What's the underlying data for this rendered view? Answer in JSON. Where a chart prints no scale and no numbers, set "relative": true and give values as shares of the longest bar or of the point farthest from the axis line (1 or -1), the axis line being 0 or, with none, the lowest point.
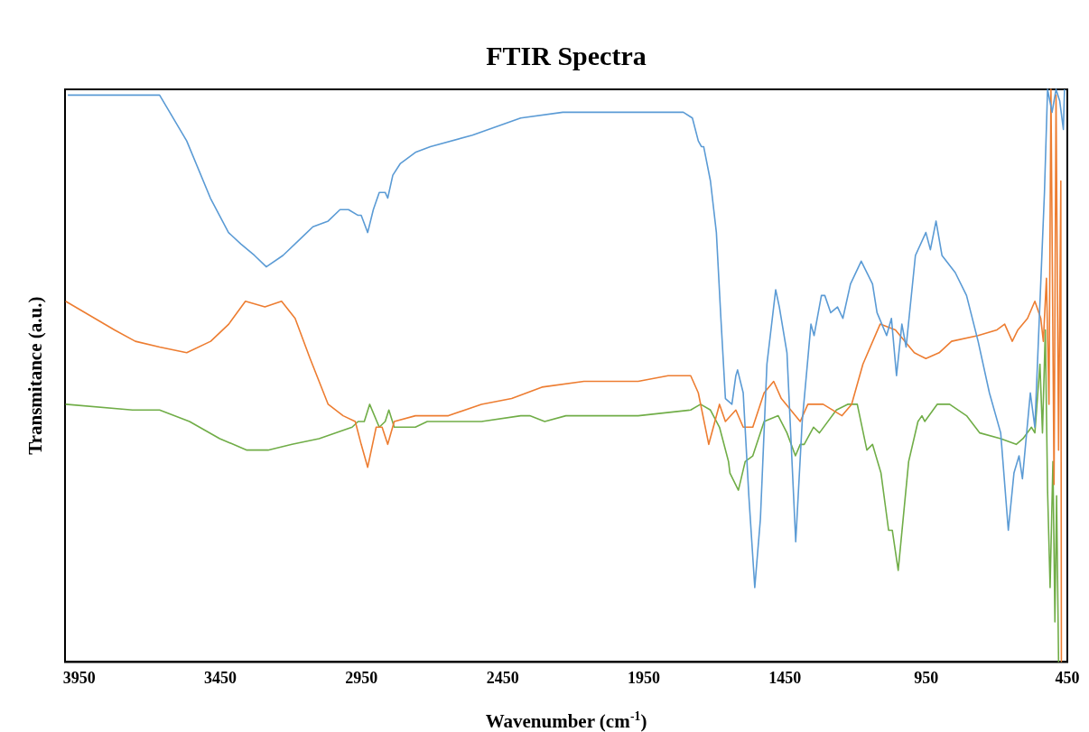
{
  "chart_data": {
    "type": "line",
    "title": "FTIR Spectra",
    "xlabel": "Wavenumber (cm$^{-1}$)",
    "ylabel": "Transmitance (a.u.)",
    "relative": true,
    "xlim": [
      4000,
      450
    ],
    "xticks": [
      3950,
      3450,
      2950,
      2450,
      1950,
      1450,
      950,
      450
    ],
    "grid": false,
    "legend": false,
    "marker": "none",
    "line_style": "solid",
    "series": [
      {
        "color": "#5b9bd5",
        "x": [
          3990,
          3719,
          3665,
          3569,
          3485,
          3421,
          3377,
          3329,
          3287,
          3228,
          3164,
          3122,
          3068,
          3026,
          2996,
          2962,
          2951,
          2928,
          2908,
          2887,
          2866,
          2857,
          2839,
          2813,
          2759,
          2706,
          2557,
          2386,
          2237,
          2077,
          1874,
          1810,
          1778,
          1757,
          1746,
          1738,
          1714,
          1693,
          1677,
          1661,
          1638,
          1624,
          1618,
          1598,
          1578,
          1557,
          1537,
          1514,
          1483,
          1470,
          1443,
          1412,
          1389,
          1358,
          1347,
          1321,
          1309,
          1288,
          1264,
          1245,
          1218,
          1180,
          1140,
          1124,
          1090,
          1073,
          1055,
          1036,
          1021,
          988,
          951,
          935,
          915,
          894,
          847,
          807,
          766,
          726,
          686,
          659,
          639,
          621,
          609,
          581,
          565,
          531,
          520,
          504,
          490,
          477,
          464,
          460
        ],
        "values": [
          0.99,
          0.99,
          0.99,
          0.91,
          0.81,
          0.75,
          0.73,
          0.71,
          0.69,
          0.71,
          0.74,
          0.76,
          0.77,
          0.79,
          0.79,
          0.78,
          0.78,
          0.75,
          0.79,
          0.82,
          0.82,
          0.81,
          0.85,
          0.87,
          0.89,
          0.9,
          0.92,
          0.95,
          0.96,
          0.96,
          0.96,
          0.96,
          0.95,
          0.91,
          0.9,
          0.9,
          0.84,
          0.75,
          0.6,
          0.46,
          0.45,
          0.5,
          0.51,
          0.47,
          0.29,
          0.13,
          0.25,
          0.52,
          0.65,
          0.62,
          0.54,
          0.21,
          0.42,
          0.59,
          0.57,
          0.64,
          0.64,
          0.61,
          0.62,
          0.6,
          0.66,
          0.7,
          0.66,
          0.61,
          0.57,
          0.6,
          0.5,
          0.59,
          0.55,
          0.71,
          0.75,
          0.72,
          0.77,
          0.71,
          0.68,
          0.64,
          0.56,
          0.47,
          0.4,
          0.23,
          0.33,
          0.36,
          0.32,
          0.47,
          0.41,
          0.82,
          1.0,
          0.96,
          1.0,
          0.98,
          0.93,
          1.0
        ]
      },
      {
        "color": "#ed7d31",
        "x": [
          3998,
          3825,
          3751,
          3665,
          3569,
          3484,
          3420,
          3361,
          3292,
          3233,
          3185,
          3132,
          3068,
          3015,
          2972,
          2951,
          2928,
          2898,
          2877,
          2857,
          2834,
          2759,
          2727,
          2642,
          2525,
          2418,
          2311,
          2162,
          1970,
          1864,
          1784,
          1757,
          1720,
          1682,
          1661,
          1624,
          1598,
          1564,
          1524,
          1490,
          1463,
          1396,
          1369,
          1315,
          1248,
          1214,
          1174,
          1113,
          1059,
          992,
          951,
          904,
          860,
          766,
          699,
          672,
          645,
          625,
          591,
          565,
          544,
          535,
          524,
          515,
          508,
          497,
          490,
          481,
          473,
          471
        ],
        "values": [
          0.63,
          0.58,
          0.56,
          0.55,
          0.54,
          0.56,
          0.59,
          0.63,
          0.62,
          0.63,
          0.6,
          0.53,
          0.45,
          0.43,
          0.42,
          0.38,
          0.34,
          0.41,
          0.41,
          0.38,
          0.42,
          0.43,
          0.43,
          0.43,
          0.45,
          0.46,
          0.48,
          0.49,
          0.49,
          0.5,
          0.5,
          0.47,
          0.38,
          0.45,
          0.42,
          0.44,
          0.41,
          0.41,
          0.47,
          0.49,
          0.46,
          0.42,
          0.45,
          0.45,
          0.43,
          0.45,
          0.52,
          0.59,
          0.58,
          0.54,
          0.53,
          0.54,
          0.56,
          0.57,
          0.58,
          0.59,
          0.56,
          0.58,
          0.6,
          0.63,
          0.6,
          0.56,
          0.67,
          0.45,
          1.0,
          0.31,
          0.99,
          0.37,
          0.84,
          0
        ]
      },
      {
        "color": "#70ad47",
        "x": [
          3998,
          3761,
          3665,
          3559,
          3452,
          3356,
          3281,
          3196,
          3100,
          2983,
          2962,
          2940,
          2921,
          2887,
          2866,
          2853,
          2834,
          2759,
          2717,
          2525,
          2386,
          2354,
          2301,
          2226,
          1970,
          1784,
          1749,
          1714,
          1682,
          1650,
          1645,
          1615,
          1591,
          1564,
          1524,
          1474,
          1443,
          1413,
          1396,
          1382,
          1349,
          1328,
          1268,
          1228,
          1194,
          1160,
          1140,
          1110,
          1083,
          1070,
          1049,
          1012,
          979,
          965,
          955,
          911,
          867,
          807,
          760,
          686,
          631,
          607,
          577,
          565,
          547,
          538,
          528,
          520,
          511,
          501,
          494,
          488,
          481
        ],
        "values": [
          0.45,
          0.44,
          0.44,
          0.42,
          0.39,
          0.37,
          0.37,
          0.38,
          0.39,
          0.41,
          0.42,
          0.42,
          0.45,
          0.41,
          0.42,
          0.44,
          0.41,
          0.41,
          0.42,
          0.42,
          0.43,
          0.43,
          0.42,
          0.43,
          0.43,
          0.44,
          0.45,
          0.44,
          0.41,
          0.35,
          0.33,
          0.3,
          0.35,
          0.36,
          0.42,
          0.43,
          0.4,
          0.36,
          0.38,
          0.38,
          0.41,
          0.4,
          0.44,
          0.45,
          0.45,
          0.37,
          0.38,
          0.33,
          0.23,
          0.23,
          0.16,
          0.35,
          0.42,
          0.43,
          0.42,
          0.45,
          0.45,
          0.43,
          0.4,
          0.39,
          0.38,
          0.39,
          0.41,
          0.4,
          0.52,
          0.4,
          0.58,
          0.3,
          0.13,
          0.35,
          0.07,
          0.29,
          0
        ]
      }
    ]
  }
}
